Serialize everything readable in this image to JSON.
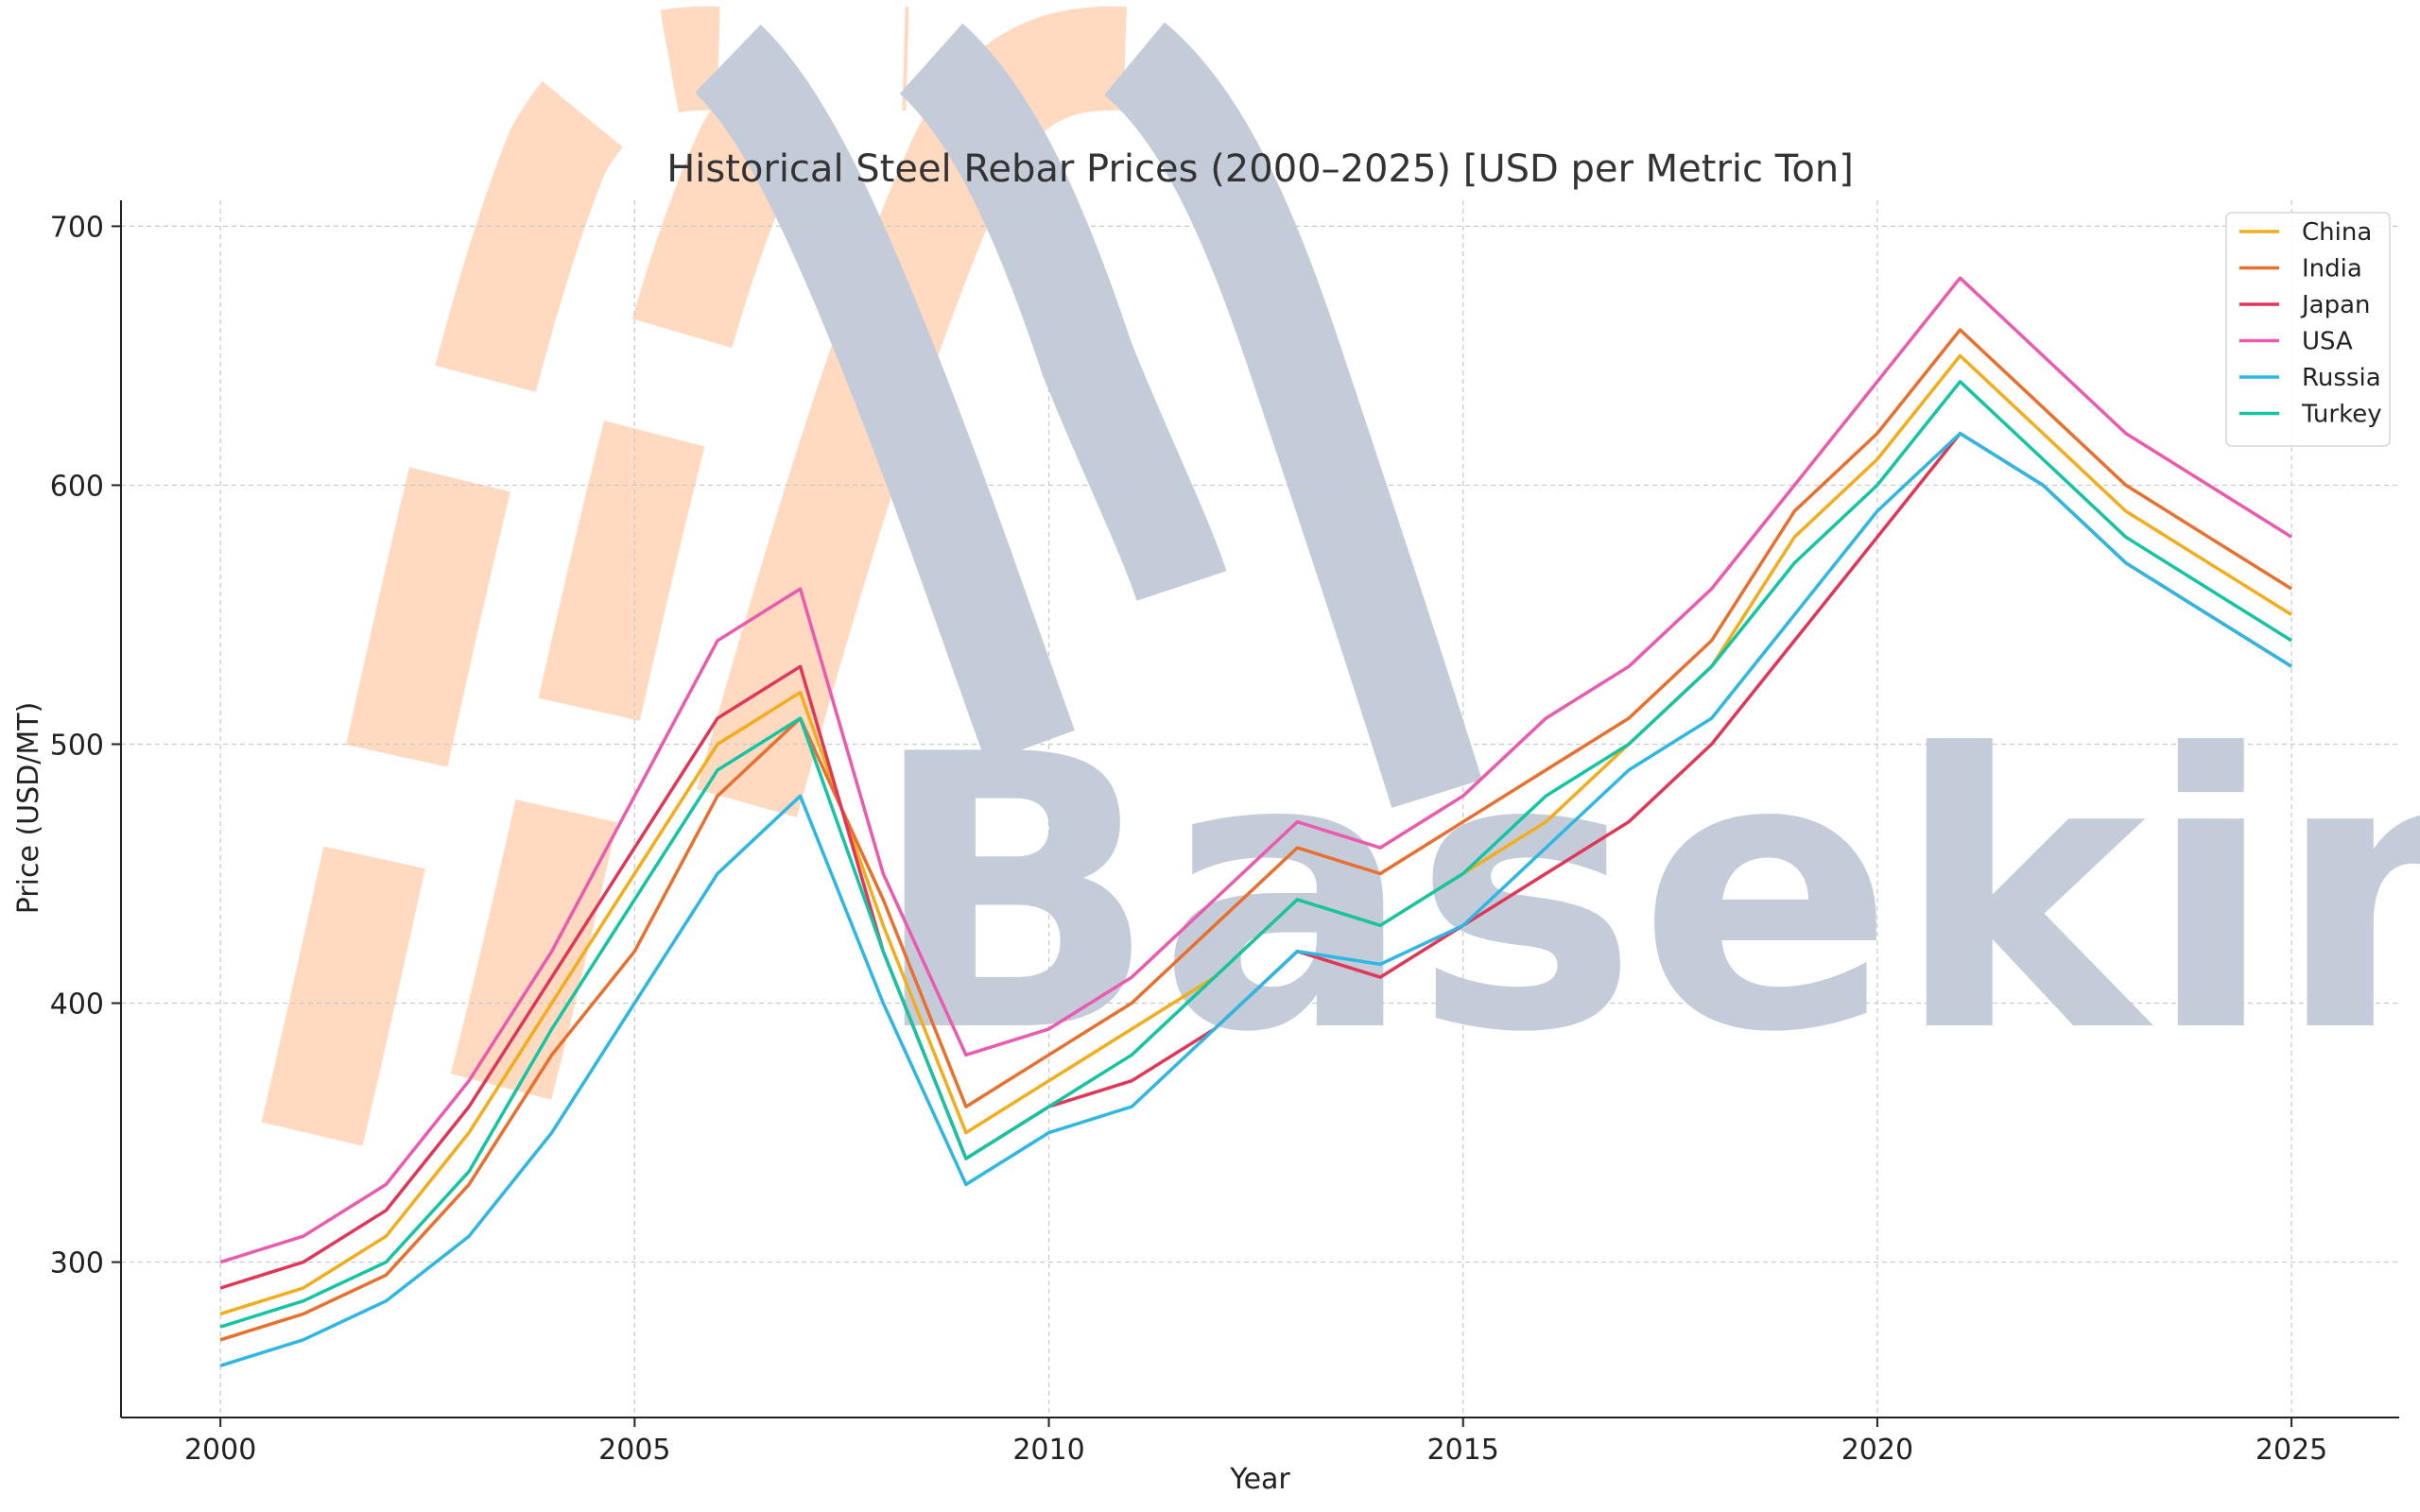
{
  "chart_data": {
    "type": "line",
    "title": "Historical Steel Rebar Prices (2000–2025) [USD per Metric Ton]",
    "xlabel": "Year",
    "ylabel": "Price (USD/MT)",
    "xlim": [
      1998.8,
      2026.3
    ],
    "ylim": [
      240,
      710
    ],
    "x_ticks": [
      2000,
      2005,
      2010,
      2015,
      2020,
      2025
    ],
    "y_ticks": [
      300,
      400,
      500,
      600,
      700
    ],
    "grid": true,
    "legend_position": "top-right",
    "x": [
      2000,
      2001,
      2002,
      2003,
      2004,
      2005,
      2006,
      2007,
      2008,
      2009,
      2010,
      2011,
      2012,
      2013,
      2014,
      2015,
      2016,
      2017,
      2018,
      2019,
      2020,
      2021,
      2022,
      2023,
      2024,
      2025
    ],
    "series": [
      {
        "name": "China",
        "color": "#f2ad1c",
        "values": [
          280,
          290,
          310,
          350,
          400,
          450,
          500,
          520,
          430,
          350,
          370,
          390,
          410,
          440,
          430,
          450,
          470,
          500,
          530,
          580,
          610,
          650,
          620,
          590,
          570,
          550
        ]
      },
      {
        "name": "India",
        "color": "#e8702e",
        "values": [
          270,
          280,
          295,
          330,
          380,
          420,
          480,
          510,
          440,
          360,
          380,
          400,
          430,
          460,
          450,
          470,
          490,
          510,
          540,
          590,
          620,
          660,
          630,
          600,
          580,
          560
        ]
      },
      {
        "name": "Japan",
        "color": "#e03658",
        "values": [
          290,
          300,
          320,
          360,
          410,
          460,
          510,
          530,
          420,
          340,
          360,
          370,
          390,
          420,
          410,
          430,
          450,
          470,
          500,
          540,
          580,
          620,
          600,
          570,
          550,
          530
        ]
      },
      {
        "name": "USA",
        "color": "#ea5bb0",
        "values": [
          300,
          310,
          330,
          370,
          420,
          480,
          540,
          560,
          450,
          380,
          390,
          410,
          440,
          470,
          460,
          480,
          510,
          530,
          560,
          600,
          640,
          680,
          650,
          620,
          600,
          580
        ]
      },
      {
        "name": "Russia",
        "color": "#2fb7e4",
        "values": [
          260,
          270,
          285,
          310,
          350,
          400,
          450,
          480,
          400,
          330,
          350,
          360,
          390,
          420,
          415,
          430,
          460,
          490,
          510,
          550,
          590,
          620,
          600,
          570,
          550,
          530
        ]
      },
      {
        "name": "Turkey",
        "color": "#14c4a2",
        "values": [
          275,
          285,
          300,
          335,
          390,
          440,
          490,
          510,
          420,
          340,
          360,
          380,
          410,
          440,
          430,
          450,
          480,
          500,
          530,
          570,
          600,
          640,
          610,
          580,
          560,
          540
        ]
      }
    ]
  },
  "watermark": {
    "text": "Basekim",
    "color": "#b9c2d1",
    "accent": "#ffd3b3"
  }
}
